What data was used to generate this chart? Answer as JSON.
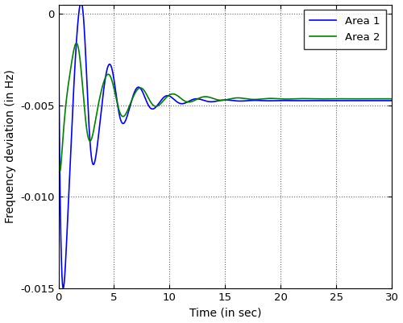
{
  "title": "",
  "xlabel": "Time (in sec)",
  "ylabel": "Frequency deviation (in Hz)",
  "xlim": [
    0,
    30
  ],
  "ylim": [
    -0.015,
    0.0005
  ],
  "yticks": [
    0,
    -0.005,
    -0.01,
    -0.015
  ],
  "xticks": [
    0,
    5,
    10,
    15,
    20,
    25,
    30
  ],
  "area1_color": "#0000FF",
  "area2_color": "#008000",
  "legend_labels": [
    "Area 1",
    "Area 2"
  ],
  "figsize": [
    5.0,
    4.01
  ],
  "dpi": 100,
  "area1_params": {
    "steady": -0.00475,
    "A1": 0.0115,
    "f1": 0.38,
    "d1": 0.38,
    "A2": 0.0028,
    "f2": 0.76,
    "d2": 0.65,
    "A3": 0.0008,
    "f3": 1.14,
    "d3": 1.0,
    "ramp_tau": 0.08
  },
  "area2_params": {
    "steady": -0.00465,
    "A1": 0.0048,
    "f1": 0.34,
    "d1": 0.28,
    "A2": 0.0012,
    "f2": 0.68,
    "d2": 0.5,
    "ramp_tau": 0.06
  }
}
